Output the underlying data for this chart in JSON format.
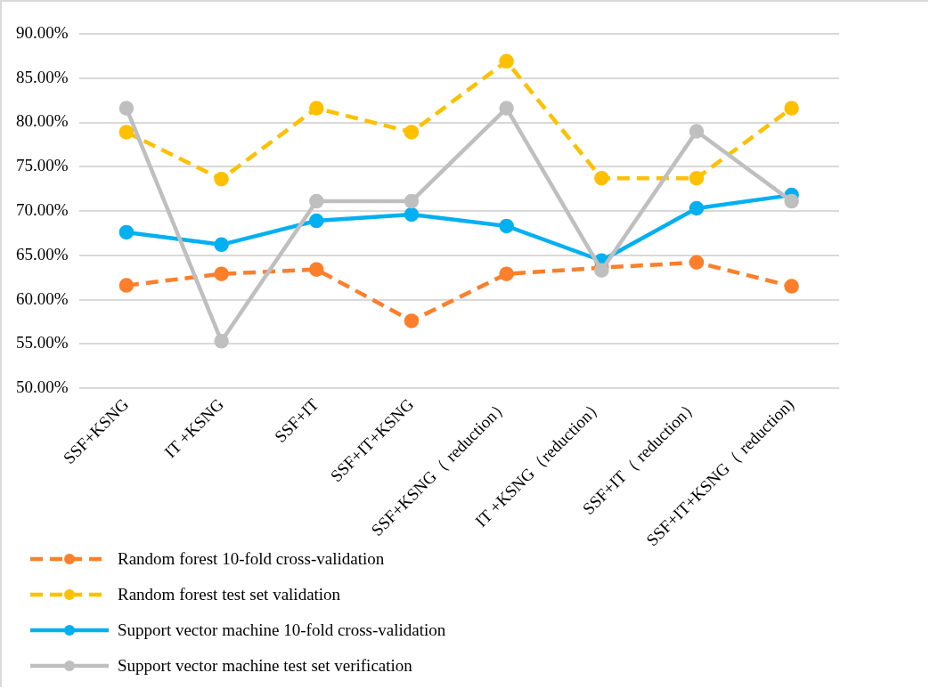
{
  "chart_data": {
    "type": "line",
    "categories": [
      "SSF+KSNG",
      "IT +KSNG",
      "SSF+IT",
      "SSF+IT+KSNG",
      "SSF+KSNG（ reduction）",
      "IT +KSNG（reduction）",
      "SSF+IT（ reduction）",
      "SSF+IT+KSNG（ reduction)"
    ],
    "series": [
      {
        "name": "Random forest 10-fold cross-validation",
        "color": "#fe7f2b",
        "line_style": "dashed",
        "values": [
          61.6,
          62.9,
          63.4,
          57.6,
          62.9,
          63.6,
          64.2,
          61.5
        ]
      },
      {
        "name": "Random forest test set validation",
        "color": "#fec000",
        "line_style": "dashed",
        "values": [
          78.9,
          73.6,
          81.6,
          78.9,
          86.9,
          73.7,
          73.7,
          81.6
        ]
      },
      {
        "name": "Support vector machine 10-fold cross-validation",
        "color": "#00b0f0",
        "line_style": "solid",
        "values": [
          67.6,
          66.2,
          68.9,
          69.6,
          68.3,
          64.4,
          70.3,
          71.8
        ]
      },
      {
        "name": "Support vector machine test set verification",
        "color": "#bfbfbf",
        "line_style": "solid",
        "values": [
          81.6,
          55.3,
          71.1,
          71.1,
          81.6,
          63.3,
          79.0,
          71.1
        ]
      }
    ],
    "ylim": [
      50,
      90
    ],
    "yticks": [
      {
        "value": 50,
        "label": "50.00%"
      },
      {
        "value": 55,
        "label": "55.00%"
      },
      {
        "value": 60,
        "label": "60.00%"
      },
      {
        "value": 65,
        "label": "65.00%"
      },
      {
        "value": 70,
        "label": "70.00%"
      },
      {
        "value": 75,
        "label": "75.00%"
      },
      {
        "value": 80,
        "label": "80.00%"
      },
      {
        "value": 85,
        "label": "85.00%"
      },
      {
        "value": 90,
        "label": "90.00%"
      }
    ],
    "grid": "y",
    "legend": "bottom left",
    "marker": "circle"
  }
}
